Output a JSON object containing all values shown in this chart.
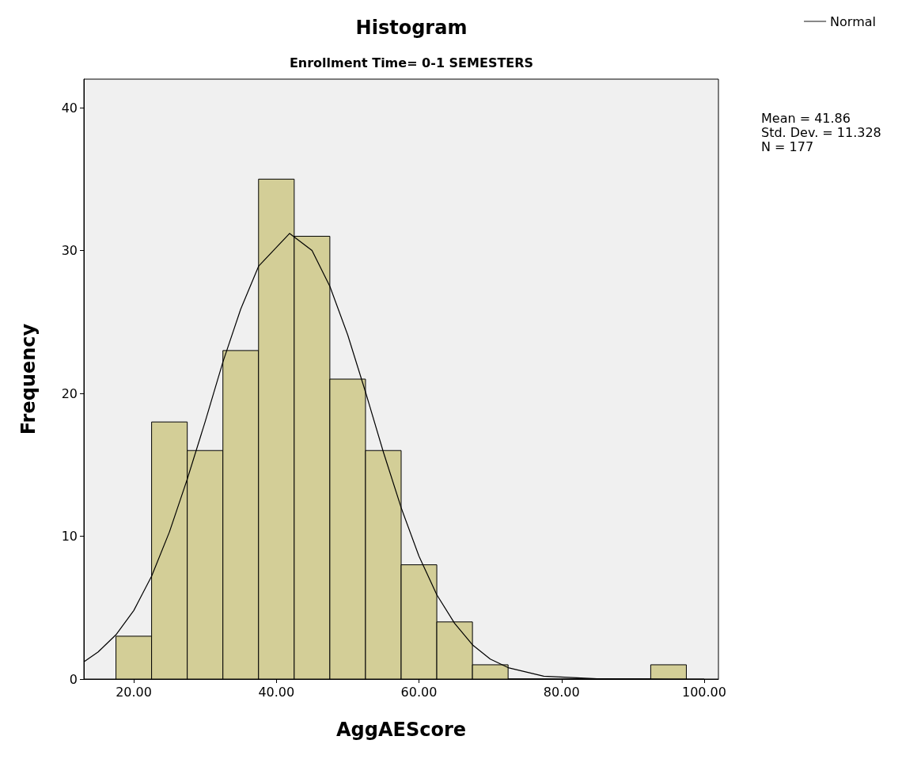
{
  "chart_data": {
    "type": "histogram",
    "title": "Histogram",
    "subtitle": "Enrollment Time= 0-1 SEMESTERS",
    "xlabel": "AggAEScore",
    "ylabel": "Frequency",
    "bins": [
      17.5,
      22.5,
      27.5,
      32.5,
      37.5,
      42.5,
      47.5,
      52.5,
      57.5,
      62.5,
      67.5,
      72.5,
      77.5,
      82.5,
      87.5,
      92.5,
      97.5
    ],
    "values": [
      3,
      18,
      16,
      23,
      35,
      31,
      21,
      16,
      8,
      4,
      1,
      0,
      0,
      0,
      0,
      1
    ],
    "color": "#d3ce97",
    "series": [
      {
        "name": "Normal",
        "type": "line",
        "color": "#000000",
        "x": [
          13,
          15,
          17.5,
          20,
          22.5,
          25,
          27.5,
          30,
          32.5,
          35,
          37.5,
          41.86,
          45,
          47.5,
          50,
          52.5,
          55,
          57.5,
          60,
          62.5,
          65,
          67.5,
          70,
          72.5,
          77.5,
          85,
          95,
          100
        ],
        "values": [
          1.2,
          1.9,
          3.1,
          4.8,
          7.2,
          10.3,
          14.0,
          18.0,
          22.2,
          25.9,
          28.9,
          31.2,
          30.0,
          27.5,
          24.1,
          20.1,
          15.9,
          12.0,
          8.6,
          5.9,
          3.9,
          2.4,
          1.4,
          0.8,
          0.2,
          0.02,
          0,
          0
        ]
      }
    ],
    "xlim": [
      13,
      102
    ],
    "ylim": [
      0,
      42
    ],
    "xticks": [
      {
        "value": 20,
        "label": "20.00"
      },
      {
        "value": 40,
        "label": "40.00"
      },
      {
        "value": 60,
        "label": "60.00"
      },
      {
        "value": 80,
        "label": "80.00"
      },
      {
        "value": 100,
        "label": "100.00"
      }
    ],
    "yticks": [
      0,
      10,
      20,
      30,
      40
    ],
    "grid": false,
    "legend": "top right",
    "annotations": [
      "Mean = 41.86",
      "Std. Dev. = 11.328",
      "N = 177"
    ]
  }
}
